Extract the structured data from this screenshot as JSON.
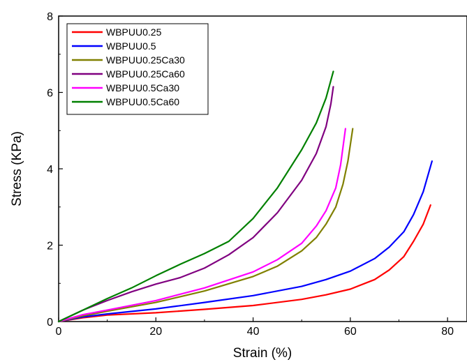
{
  "chart_data": {
    "type": "line",
    "title": "",
    "xlabel": "Strain (%)",
    "ylabel": "Stress (KPa)",
    "xlim": [
      0,
      84
    ],
    "ylim": [
      0,
      8
    ],
    "xticks": [
      0,
      20,
      40,
      60,
      80
    ],
    "yticks": [
      0,
      2,
      4,
      6,
      8
    ],
    "xtick_labels": [
      "0",
      "20",
      "40",
      "60",
      "80"
    ],
    "ytick_labels": [
      "0",
      "2",
      "4",
      "6",
      "8"
    ],
    "grid": false,
    "legend_position": "top-left",
    "series": [
      {
        "name": "WBPUU0.25",
        "color": "#ff0000",
        "points": [
          [
            0,
            0
          ],
          [
            5,
            0.1
          ],
          [
            10,
            0.17
          ],
          [
            20,
            0.23
          ],
          [
            30,
            0.32
          ],
          [
            40,
            0.42
          ],
          [
            50,
            0.58
          ],
          [
            55,
            0.7
          ],
          [
            60,
            0.85
          ],
          [
            65,
            1.1
          ],
          [
            68,
            1.35
          ],
          [
            71,
            1.7
          ],
          [
            73,
            2.1
          ],
          [
            75,
            2.55
          ],
          [
            76.5,
            3.05
          ]
        ]
      },
      {
        "name": "WBPUU0.5",
        "color": "#0000ff",
        "points": [
          [
            0,
            0
          ],
          [
            5,
            0.12
          ],
          [
            10,
            0.2
          ],
          [
            20,
            0.33
          ],
          [
            30,
            0.5
          ],
          [
            40,
            0.68
          ],
          [
            50,
            0.92
          ],
          [
            55,
            1.1
          ],
          [
            60,
            1.32
          ],
          [
            65,
            1.65
          ],
          [
            68,
            1.95
          ],
          [
            71,
            2.35
          ],
          [
            73,
            2.8
          ],
          [
            75,
            3.4
          ],
          [
            76.8,
            4.2
          ]
        ]
      },
      {
        "name": "WBPUU0.25Ca30",
        "color": "#808000",
        "points": [
          [
            0,
            0
          ],
          [
            5,
            0.15
          ],
          [
            10,
            0.27
          ],
          [
            20,
            0.5
          ],
          [
            30,
            0.8
          ],
          [
            40,
            1.18
          ],
          [
            45,
            1.45
          ],
          [
            50,
            1.85
          ],
          [
            53,
            2.2
          ],
          [
            55,
            2.55
          ],
          [
            57,
            3.0
          ],
          [
            58.5,
            3.6
          ],
          [
            59.5,
            4.2
          ],
          [
            60.5,
            5.05
          ]
        ]
      },
      {
        "name": "WBPUU0.25Ca60",
        "color": "#800080",
        "points": [
          [
            0,
            0
          ],
          [
            5,
            0.3
          ],
          [
            10,
            0.55
          ],
          [
            15,
            0.78
          ],
          [
            20,
            0.98
          ],
          [
            25,
            1.15
          ],
          [
            30,
            1.4
          ],
          [
            35,
            1.75
          ],
          [
            40,
            2.2
          ],
          [
            45,
            2.85
          ],
          [
            50,
            3.7
          ],
          [
            53,
            4.4
          ],
          [
            55,
            5.1
          ],
          [
            56,
            5.7
          ],
          [
            56.5,
            6.15
          ]
        ]
      },
      {
        "name": "WBPUU0.5Ca30",
        "color": "#ff00ff",
        "points": [
          [
            0,
            0
          ],
          [
            5,
            0.18
          ],
          [
            10,
            0.3
          ],
          [
            20,
            0.55
          ],
          [
            30,
            0.88
          ],
          [
            40,
            1.3
          ],
          [
            45,
            1.62
          ],
          [
            50,
            2.05
          ],
          [
            53,
            2.5
          ],
          [
            55,
            2.9
          ],
          [
            57,
            3.5
          ],
          [
            58,
            4.1
          ],
          [
            59,
            5.05
          ]
        ]
      },
      {
        "name": "WBPUU0.5Ca60",
        "color": "#008000",
        "points": [
          [
            0,
            0
          ],
          [
            5,
            0.3
          ],
          [
            10,
            0.6
          ],
          [
            15,
            0.88
          ],
          [
            20,
            1.2
          ],
          [
            25,
            1.5
          ],
          [
            30,
            1.78
          ],
          [
            35,
            2.1
          ],
          [
            40,
            2.7
          ],
          [
            45,
            3.5
          ],
          [
            50,
            4.5
          ],
          [
            53,
            5.2
          ],
          [
            55,
            5.85
          ],
          [
            56.5,
            6.55
          ]
        ]
      }
    ]
  }
}
